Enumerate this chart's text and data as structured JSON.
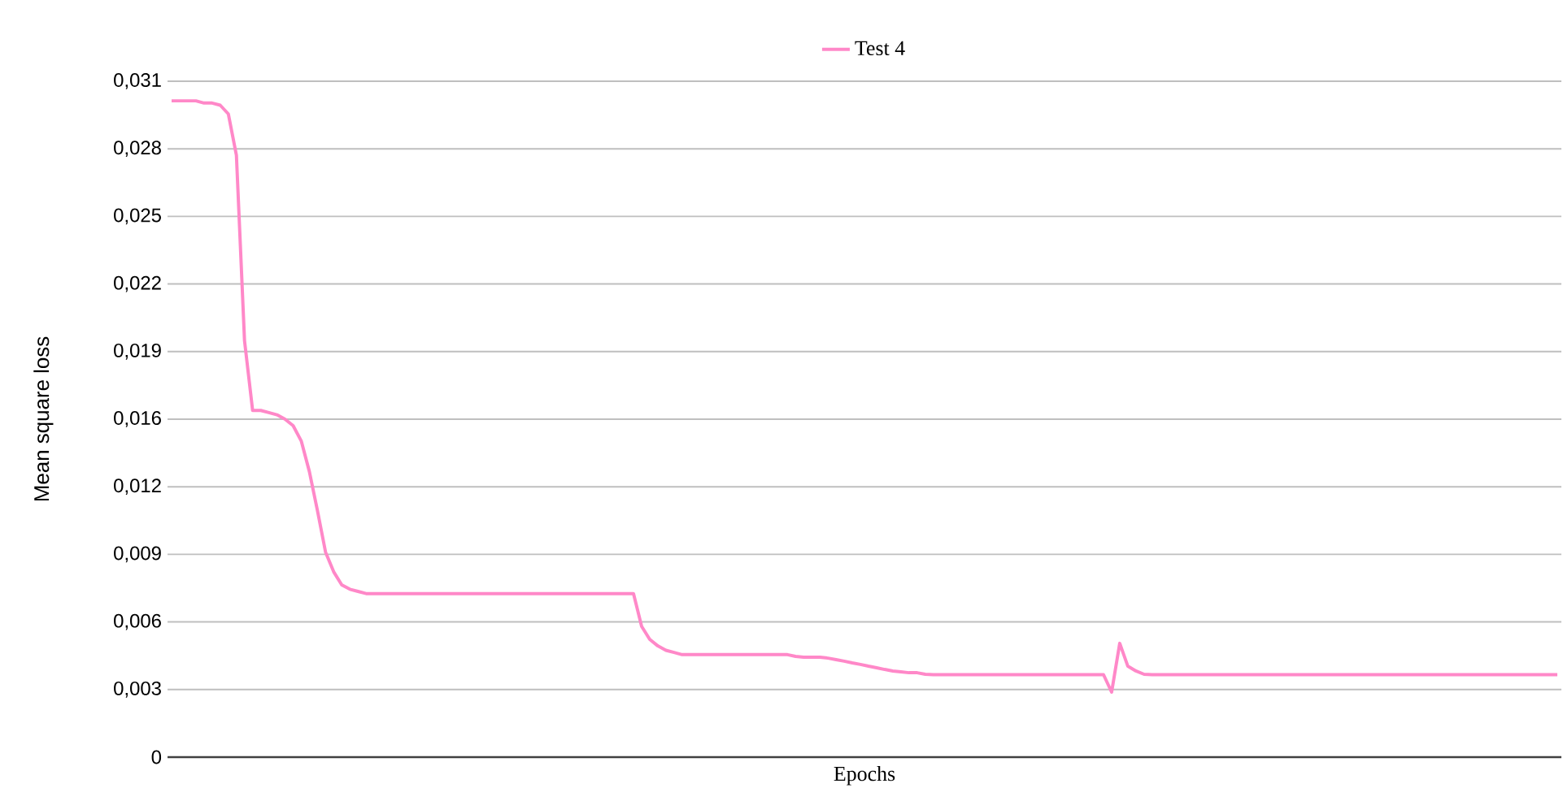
{
  "chart_data": {
    "type": "line",
    "xlabel": "Epochs",
    "ylabel": "Mean square loss",
    "categories": [
      null,
      null,
      null,
      null,
      null,
      null,
      null,
      null,
      null,
      null,
      null,
      null,
      null,
      null,
      null,
      null,
      null,
      null,
      null,
      null,
      null,
      null,
      null,
      null,
      null,
      null,
      null,
      null,
      null,
      null,
      null,
      null,
      null,
      null,
      null,
      null,
      null,
      null,
      null,
      null,
      null,
      null,
      null,
      null,
      null,
      null,
      null,
      null,
      null,
      null,
      null,
      null,
      null,
      null,
      null,
      null,
      null,
      null,
      null,
      null,
      null,
      null,
      null,
      null,
      null,
      null,
      null,
      null,
      null,
      null,
      null,
      null,
      null,
      null,
      null,
      null,
      null,
      null,
      null,
      null,
      null,
      null,
      null,
      null,
      null,
      null,
      null,
      null,
      null,
      null,
      null,
      null,
      null,
      null,
      null,
      null,
      null,
      null,
      null,
      null,
      null,
      null,
      null,
      null,
      null,
      null,
      null,
      null,
      null,
      null,
      null,
      null,
      null,
      null,
      null,
      null,
      null,
      null,
      null,
      null,
      null,
      null,
      null,
      null,
      null,
      null,
      null,
      null,
      null,
      null,
      null,
      null,
      null,
      null,
      null,
      null,
      null,
      null,
      null,
      null,
      null,
      null,
      null,
      null,
      null,
      null,
      null,
      null,
      null,
      null,
      null,
      null,
      null,
      null,
      null,
      null,
      null,
      null,
      null,
      null,
      null,
      null,
      null,
      null,
      null,
      null,
      null,
      null,
      null,
      null,
      null,
      null
    ],
    "series": [
      {
        "name": "Test 4",
        "color": "#ff88c8",
        "values": [
          0.0301,
          0.0301,
          0.0301,
          0.0301,
          0.03,
          0.03,
          0.0299,
          0.0295,
          0.0276,
          0.0191,
          0.0159,
          0.0159,
          0.0158,
          0.0157,
          0.0155,
          0.0152,
          0.0145,
          0.0131,
          0.0113,
          0.0094,
          0.0085,
          0.0079,
          0.0077,
          0.0076,
          0.0075,
          0.0075,
          0.0075,
          0.0075,
          0.0075,
          0.0075,
          0.0075,
          0.0075,
          0.0075,
          0.0075,
          0.0075,
          0.0075,
          0.0075,
          0.0075,
          0.0075,
          0.0075,
          0.0075,
          0.0075,
          0.0075,
          0.0075,
          0.0075,
          0.0075,
          0.0075,
          0.0075,
          0.0075,
          0.0075,
          0.0075,
          0.0075,
          0.0075,
          0.0075,
          0.0075,
          0.0075,
          0.0075,
          0.0075,
          0.006,
          0.0054,
          0.0051,
          0.0049,
          0.0048,
          0.0047,
          0.0047,
          0.0047,
          0.0047,
          0.0047,
          0.0047,
          0.0047,
          0.0047,
          0.0047,
          0.0047,
          0.0047,
          0.0047,
          0.0047,
          0.0047,
          0.00462,
          0.00458,
          0.00458,
          0.00458,
          0.00454,
          0.00447,
          0.0044,
          0.00432,
          0.00425,
          0.00417,
          0.0041,
          0.00402,
          0.00395,
          0.00391,
          0.00387,
          0.00387,
          0.0038,
          0.00378,
          0.00378,
          0.00378,
          0.00378,
          0.00378,
          0.00378,
          0.00378,
          0.00378,
          0.00378,
          0.00378,
          0.00378,
          0.00378,
          0.00378,
          0.00378,
          0.00378,
          0.00378,
          0.00378,
          0.00378,
          0.00378,
          0.00378,
          0.00378,
          0.00378,
          0.00298,
          0.00522,
          0.00417,
          0.00395,
          0.0038,
          0.00378,
          0.00378,
          0.00378,
          0.00378,
          0.00378,
          0.00378,
          0.00378,
          0.00378,
          0.00378,
          0.00378,
          0.00378,
          0.00378,
          0.00378,
          0.00378,
          0.00378,
          0.00378,
          0.00378,
          0.00378,
          0.00378,
          0.00378,
          0.00378,
          0.00378,
          0.00378,
          0.00378,
          0.00378,
          0.00378,
          0.00378,
          0.00378,
          0.00378,
          0.00378,
          0.00378,
          0.00378,
          0.00378,
          0.00378,
          0.00378,
          0.00378,
          0.00378,
          0.00378,
          0.00378,
          0.00378,
          0.00378,
          0.00378,
          0.00378,
          0.00378,
          0.00378,
          0.00378,
          0.00378,
          0.00378,
          0.00378,
          0.00378,
          0.00378
        ]
      }
    ],
    "ylim": [
      0,
      0.031
    ],
    "yticks": [
      0,
      {
        "value": 0.0031,
        "label": "0,003"
      },
      {
        "value": 0.0062,
        "label": "0,006"
      },
      {
        "value": 0.0093,
        "label": "0,009"
      },
      {
        "value": 0.0124,
        "label": "0,012"
      },
      {
        "value": 0.0155,
        "label": "0,016"
      },
      {
        "value": 0.0186,
        "label": "0,019"
      },
      {
        "value": 0.0217,
        "label": "0,022"
      },
      {
        "value": 0.0248,
        "label": "0,025"
      },
      {
        "value": 0.0279,
        "label": "0,028"
      },
      {
        "value": 0.031,
        "label": "0,031"
      }
    ],
    "grid": "y",
    "legend": "top",
    "marker": "none",
    "line_style": "solid"
  }
}
